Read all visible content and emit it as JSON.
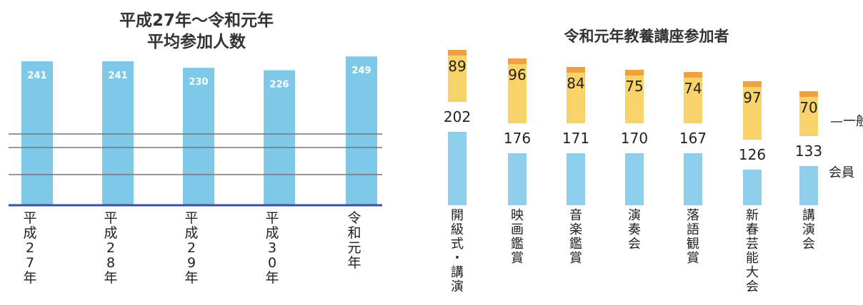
{
  "chart_data": [
    {
      "type": "bar",
      "title_lines": [
        "平成27年〜令和元年",
        "平均参加人数"
      ],
      "categories": [
        [
          "平",
          "成",
          "2",
          "7",
          "年"
        ],
        [
          "平",
          "成",
          "2",
          "8",
          "年"
        ],
        [
          "平",
          "成",
          "2",
          "9",
          "年"
        ],
        [
          "平",
          "成",
          "3",
          "0",
          "年"
        ],
        [
          "令",
          "和",
          "元",
          "年"
        ]
      ],
      "values": [
        241,
        241,
        230,
        226,
        249
      ],
      "value_labels": [
        "241",
        "241",
        "230",
        "226",
        "249"
      ],
      "ylim": [
        0,
        260
      ],
      "grid": true,
      "colors": {
        "bar": "#7ec8e8",
        "grid": "#777777",
        "axis": "#3a4fa0"
      }
    },
    {
      "type": "stacked_bar",
      "title": "令和元年教養講座参加者",
      "categories": [
        [
          "開",
          "級",
          "式",
          "・",
          "講",
          "演"
        ],
        [
          "映",
          "画",
          "鑑",
          "賞"
        ],
        [
          "音",
          "楽",
          "鑑",
          "賞"
        ],
        [
          "演",
          "奏",
          "会"
        ],
        [
          "落",
          "語",
          "観",
          "賞"
        ],
        [
          "新",
          "春",
          "芸",
          "能",
          "大",
          "会"
        ],
        [
          "講",
          "演",
          "会"
        ]
      ],
      "series": [
        {
          "name": "会員",
          "values": [
            202,
            176,
            171,
            170,
            167,
            126,
            133
          ],
          "labels": [
            "202",
            "176",
            "171",
            "170",
            "167",
            "126",
            "133"
          ],
          "color": "#8fcfec"
        },
        {
          "name": "一般",
          "values": [
            89,
            96,
            84,
            75,
            74,
            97,
            70
          ],
          "labels": [
            "89",
            "96",
            "84",
            "75",
            "74",
            "97",
            "70"
          ],
          "color": "#f7d36a"
        }
      ],
      "ylim": [
        0,
        300
      ],
      "legend": {
        "position": "right",
        "items": [
          "一般",
          "会員"
        ]
      },
      "accent_top": "#f0a040"
    }
  ]
}
